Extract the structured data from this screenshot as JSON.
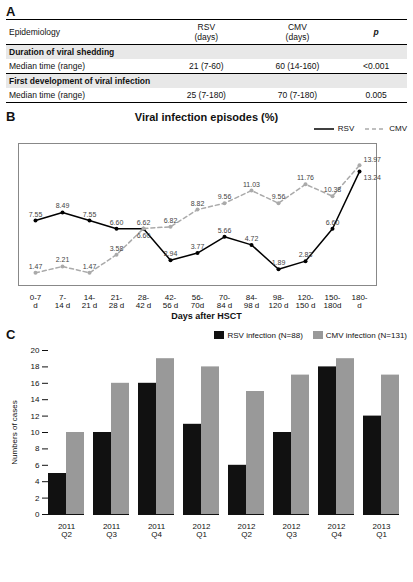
{
  "chart_data": [
    {
      "type": "table",
      "panel": "A",
      "columns": [
        "Epidemiology",
        "RSV\n(days)",
        "CMV\n(days)",
        "p"
      ],
      "sections": [
        {
          "title": "Duration of viral shedding",
          "rows": [
            [
              "Median time (range)",
              "21 (7-60)",
              "60 (14-160)",
              "<0.001"
            ]
          ]
        },
        {
          "title": "First development of viral infection",
          "rows": [
            [
              "Median time (range)",
              "25 (7-180)",
              "70 (7-180)",
              "0.005"
            ]
          ]
        }
      ]
    },
    {
      "type": "line",
      "panel": "B",
      "title": "Viral infection episodes (%)",
      "xlabel": "Days after HSCT",
      "categories": [
        "0-7\nd",
        "7-\n14 d",
        "14-\n21 d",
        "21-\n28 d",
        "28-\n42 d",
        "42-\n56 d",
        "56-\n70d",
        "70-\n84 d",
        "84-\n98 d",
        "98-\n120 d",
        "120-\n150 d",
        "150-\n180d",
        "180-\nd"
      ],
      "series": [
        {
          "name": "RSV",
          "color": "#000000",
          "line_style": "solid",
          "marker": "o",
          "values": [
            7.55,
            8.49,
            7.55,
            6.6,
            6.6,
            2.94,
            3.77,
            5.66,
            4.72,
            1.89,
            2.83,
            6.6,
            13.24
          ],
          "value_labels": [
            "7.55",
            "8.49",
            "7.55",
            "6.60",
            "6.60",
            "2.94",
            "3.77",
            "5.66",
            "4.72",
            "1.89",
            "2.83",
            "6.60",
            "13.24"
          ]
        },
        {
          "name": "CMV",
          "color": "#aaaaaa",
          "line_style": "dashed",
          "marker": "o",
          "values": [
            1.47,
            2.21,
            1.47,
            3.58,
            6.62,
            6.82,
            8.82,
            9.56,
            11.03,
            9.56,
            11.76,
            10.38,
            13.97
          ],
          "value_labels": [
            "1.47",
            "2.21",
            "1.47",
            "3.58",
            "6.62",
            "6.82",
            "8.82",
            "9.56",
            "11.03",
            "9.56",
            "11.76",
            "10.38",
            "13.97"
          ]
        }
      ],
      "ylim": [
        0,
        16.5
      ],
      "tick_labels": "x",
      "data_labels": true,
      "legend": "upper right",
      "grid": false
    },
    {
      "type": "bar",
      "panel": "C",
      "ylabel": "Numbers of cases",
      "categories": [
        "2011\nQ2",
        "2011\nQ3",
        "2011\nQ4",
        "2012\nQ1",
        "2012\nQ2",
        "2012\nQ3",
        "2012\nQ4",
        "2013\nQ1"
      ],
      "series": [
        {
          "name": "RSV infection (N=88)",
          "color": "#111111",
          "values": [
            5,
            10,
            16,
            11,
            6,
            10,
            18,
            12
          ]
        },
        {
          "name": "CMV infection (N=131)",
          "color": "#999999",
          "values": [
            10,
            16,
            19,
            18,
            15,
            17,
            19,
            17
          ]
        }
      ],
      "ylim": [
        0,
        20
      ],
      "yticks": [
        0,
        2,
        4,
        6,
        8,
        10,
        12,
        14,
        16,
        18,
        20
      ],
      "legend": "upper right",
      "grid": false
    }
  ]
}
